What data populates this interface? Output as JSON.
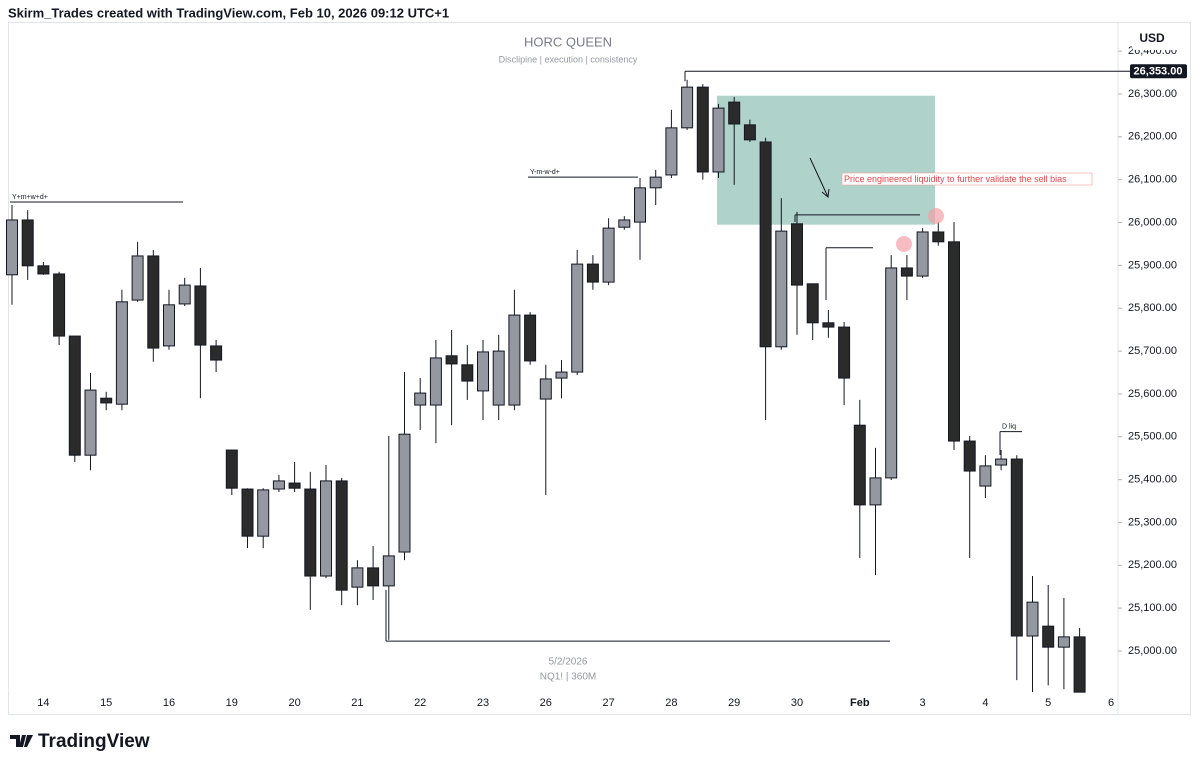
{
  "header": "Skirm_Trades created with TradingView.com, Feb 10, 2026 09:12 UTC+1",
  "footer": "TradingView",
  "chart_data": {
    "type": "candlestick",
    "title": "HORC QUEEN",
    "subtitle": "Disclipine | execution | consistency",
    "watermark": [
      "5/2/2026",
      "NQ1! | 360M"
    ],
    "currency": "USD",
    "categories": [
      null,
      null,
      "14",
      null,
      null,
      null,
      "15",
      null,
      null,
      null,
      "16",
      null,
      null,
      null,
      "19",
      null,
      null,
      null,
      "20",
      null,
      null,
      null,
      "21",
      null,
      null,
      null,
      "22",
      null,
      null,
      null,
      "23",
      null,
      null,
      null,
      "26",
      null,
      null,
      null,
      "27",
      null,
      null,
      null,
      "28",
      null,
      null,
      null,
      "29",
      null,
      null,
      null,
      "30",
      null,
      null,
      null,
      "Feb",
      null,
      null,
      null,
      "3",
      null,
      null,
      null,
      "4",
      null,
      null,
      null,
      "5",
      null,
      null,
      null,
      "6"
    ],
    "open": [
      25878,
      26006,
      25899,
      25880,
      25735,
      25457,
      25590,
      25576,
      25819,
      25922,
      25712,
      25810,
      25852,
      25712,
      25469,
      25378,
      25268,
      25378,
      25392,
      25378,
      25175,
      25397,
      25149,
      25194,
      25152,
      25231,
      25574,
      25574,
      25689,
      25668,
      25607,
      25574,
      25574,
      25784,
      25588,
      25637,
      25651,
      25903,
      25861,
      25989,
      26001,
      26081,
      26111,
      26221,
      26316,
      26118,
      26281,
      26228,
      26188,
      25710,
      25997,
      25857,
      25766,
      25756,
      25527,
      25341,
      25404,
      25894,
      25875,
      25978,
      25955,
      25490,
      25385,
      25434,
      25448,
      25035,
      25058,
      25009,
      25033,
      null,
      null
    ],
    "high": [
      26041,
      26029,
      25908,
      25885,
      25735,
      25649,
      25605,
      25843,
      25955,
      25936,
      25843,
      25871,
      25894,
      25726,
      25469,
      25380,
      25380,
      25411,
      25441,
      25418,
      25434,
      25404,
      25212,
      25245,
      25502,
      25651,
      25637,
      25726,
      25749,
      25714,
      25726,
      25738,
      25843,
      25791,
      25668,
      25679,
      25936,
      25924,
      26010,
      26015,
      26104,
      26123,
      26263,
      26333,
      26323,
      26277,
      26293,
      26240,
      26198,
      26057,
      26025,
      25857,
      25796,
      25768,
      25586,
      25474,
      25924,
      25924,
      25987,
      26001,
      26001,
      25502,
      25457,
      25469,
      25457,
      25175,
      25154,
      25124,
      25054,
      null,
      null
    ],
    "low": [
      25808,
      25866,
      25878,
      25714,
      25441,
      25422,
      25562,
      25562,
      25815,
      25675,
      25703,
      25805,
      25590,
      25651,
      25364,
      25240,
      25240,
      25371,
      25371,
      25096,
      25170,
      25107,
      25107,
      25119,
      25026,
      25212,
      25516,
      25485,
      25527,
      25586,
      25539,
      25539,
      25562,
      25668,
      25364,
      25590,
      25644,
      25843,
      25854,
      25983,
      25913,
      26041,
      26104,
      26216,
      26100,
      26104,
      26088,
      26188,
      25539,
      25703,
      25738,
      25726,
      25731,
      25574,
      25217,
      25177,
      25399,
      25819,
      25871,
      25946,
      25469,
      25217,
      25357,
      25422,
      24932,
      24904,
      24920,
      24911,
      24904,
      null,
      null
    ],
    "close": [
      26006,
      25899,
      25880,
      25735,
      25457,
      25609,
      25579,
      25815,
      25922,
      25707,
      25808,
      25854,
      25714,
      25679,
      25380,
      25268,
      25376,
      25397,
      25380,
      25175,
      25397,
      25142,
      25194,
      25152,
      25222,
      25506,
      25602,
      25684,
      25670,
      25630,
      25698,
      25700,
      25784,
      25677,
      25635,
      25651,
      25903,
      25861,
      25987,
      26006,
      26081,
      26106,
      26221,
      26316,
      26118,
      26267,
      26230,
      26193,
      25710,
      25980,
      25854,
      25766,
      25756,
      25637,
      25341,
      25404,
      25894,
      25875,
      25978,
      25955,
      25490,
      25420,
      25432,
      25448,
      25035,
      25114,
      25009,
      25033,
      24904,
      null,
      null
    ],
    "up_color": "#9598a1",
    "down_color": "#2b2b2b",
    "ylim": [
      24853,
      26468
    ],
    "yticks": [
      {
        "value": 25000,
        "label": "25,000.00"
      },
      {
        "value": 25100,
        "label": "25,100.00"
      },
      {
        "value": 25200,
        "label": "25,200.00"
      },
      {
        "value": 25300,
        "label": "25,300.00"
      },
      {
        "value": 25400,
        "label": "25,400.00"
      },
      {
        "value": 25500,
        "label": "25,500.00"
      },
      {
        "value": 25600,
        "label": "25,600.00"
      },
      {
        "value": 25700,
        "label": "25,700.00"
      },
      {
        "value": 25800,
        "label": "25,800.00"
      },
      {
        "value": 25900,
        "label": "25,900.00"
      },
      {
        "value": 26000,
        "label": "26,000.00"
      },
      {
        "value": 26100,
        "label": "26,100.00"
      },
      {
        "value": 26200,
        "label": "26,200.00"
      },
      {
        "value": 26300,
        "label": "26,300.00"
      },
      {
        "value": 26400,
        "label": "26,400.00"
      }
    ],
    "last_price": {
      "value": 26353,
      "label": "26,353.00"
    },
    "levels": [
      {
        "label": "Y+m+w+d+",
        "value": 26048
      },
      {
        "label": "Y-m-w-d+",
        "value": 26106
      },
      {
        "label": "D liq",
        "value": 25512
      },
      {
        "value": 26018
      },
      {
        "value": 25941
      },
      {
        "value": 25023
      }
    ],
    "zone": {
      "top": 26296,
      "bottom": 25995,
      "note": "Price engineered liquidity to further validate the sell bias"
    }
  }
}
